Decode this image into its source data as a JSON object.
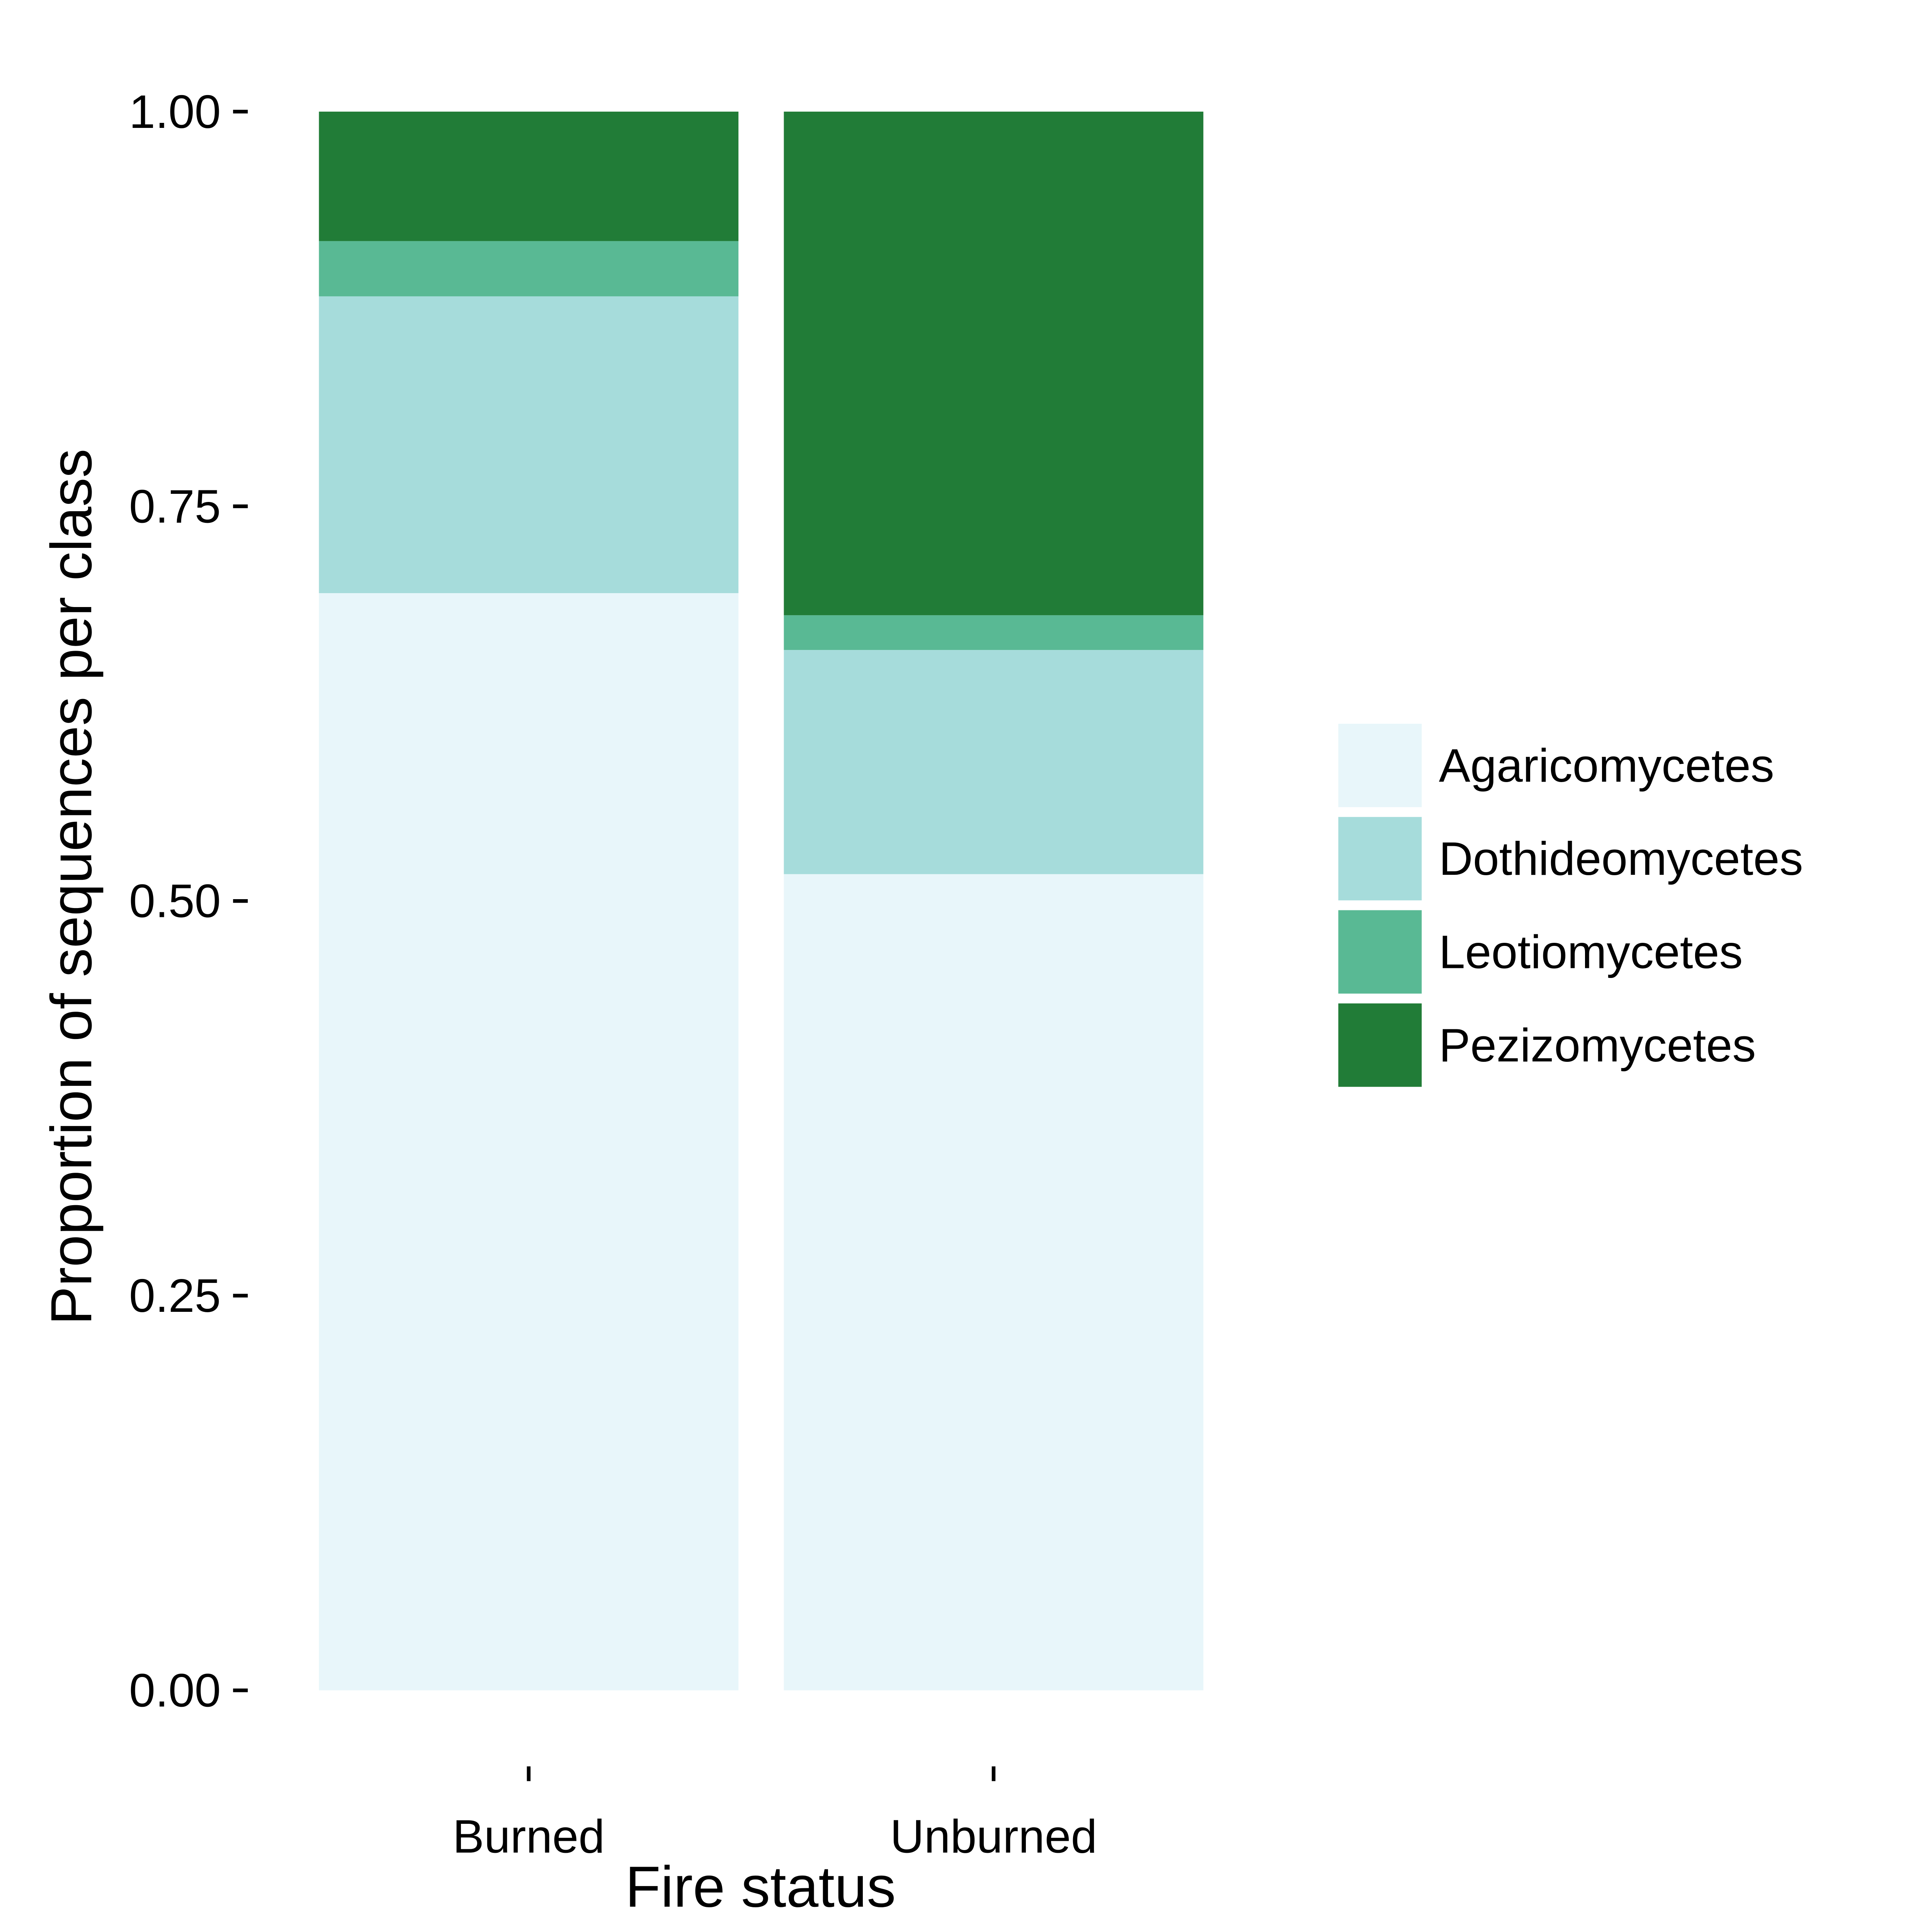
{
  "chart_data": {
    "type": "bar",
    "stacked": true,
    "title": "",
    "xlabel": "Fire status",
    "ylabel": "Proportion of sequences per class",
    "categories": [
      "Burned",
      "Unburned"
    ],
    "series": [
      {
        "name": "Agaricomycetes",
        "color": "#e8f6fa",
        "values": [
          0.695,
          0.517
        ]
      },
      {
        "name": "Dothideomycetes",
        "color": "#a6dcdb",
        "values": [
          0.188,
          0.142
        ]
      },
      {
        "name": "Leotiomycetes",
        "color": "#59b994",
        "values": [
          0.035,
          0.022
        ]
      },
      {
        "name": "Pezizomycetes",
        "color": "#217c37",
        "values": [
          0.082,
          0.319
        ]
      }
    ],
    "yticks": [
      0.0,
      0.25,
      0.5,
      0.75,
      1.0
    ],
    "ytick_labels": [
      "0.00",
      "0.25",
      "0.50",
      "0.75",
      "1.00"
    ],
    "ylim": [
      0,
      1
    ],
    "grid": false,
    "legend_position": "right"
  }
}
